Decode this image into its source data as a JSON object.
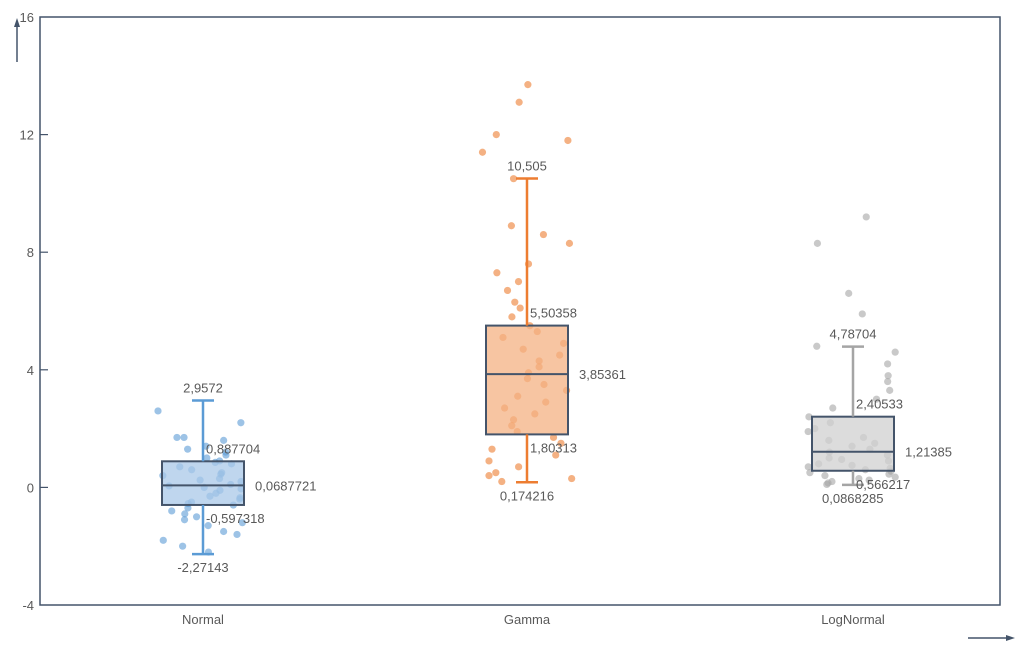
{
  "chart_data": {
    "type": "box",
    "title": "",
    "xlabel": "",
    "ylabel": "",
    "ylim": [
      -4,
      16
    ],
    "yticks": [
      "-4",
      "0",
      "4",
      "8",
      "12",
      "16"
    ],
    "ytick_values": [
      -4,
      0,
      4,
      8,
      12,
      16
    ],
    "grid": false,
    "categories": [
      "Normal",
      "Gamma",
      "LogNormal"
    ],
    "series": [
      {
        "name": "Normal",
        "color": "#5b9bd5",
        "fill": "#a9c8e8",
        "min": -2.27143,
        "q1": -0.597318,
        "median": 0.0687721,
        "q3": 0.887704,
        "max": 2.9572,
        "labels": {
          "min": "-2,27143",
          "q1": "-0,597318",
          "median": "0,0687721",
          "q3": "0,887704",
          "max": "2,9572"
        },
        "points": [
          2.6,
          2.2,
          1.7,
          1.7,
          1.6,
          1.4,
          1.3,
          1.2,
          1.1,
          1.0,
          0.9,
          0.85,
          0.8,
          0.7,
          0.6,
          0.5,
          0.45,
          0.4,
          0.3,
          0.25,
          0.2,
          0.1,
          0.05,
          0.0,
          -0.05,
          -0.1,
          -0.2,
          -0.3,
          -0.35,
          -0.4,
          -0.5,
          -0.55,
          -0.6,
          -0.7,
          -0.8,
          -0.9,
          -1.0,
          -1.1,
          -1.2,
          -1.3,
          -1.5,
          -1.6,
          -1.8,
          -2.0,
          -2.2
        ]
      },
      {
        "name": "Gamma",
        "color": "#ed7d31",
        "fill": "#f4b183",
        "min": 0.174216,
        "q1": 1.80313,
        "median": 3.85361,
        "q3": 5.50358,
        "max": 10.505,
        "labels": {
          "min": "0,174216",
          "q1": "1,80313",
          "median": "3,85361",
          "q3": "5,50358",
          "max": "10,505"
        },
        "points": [
          13.7,
          13.1,
          12.0,
          11.8,
          11.4,
          10.5,
          8.9,
          8.6,
          8.3,
          7.6,
          7.3,
          7.0,
          6.7,
          6.3,
          6.1,
          5.8,
          5.5,
          5.3,
          5.1,
          4.9,
          4.7,
          4.5,
          4.3,
          4.1,
          3.9,
          3.7,
          3.5,
          3.3,
          3.1,
          2.9,
          2.7,
          2.5,
          2.3,
          2.1,
          1.9,
          1.7,
          1.5,
          1.3,
          1.1,
          0.9,
          0.7,
          0.5,
          0.4,
          0.3,
          0.2
        ]
      },
      {
        "name": "LogNormal",
        "color": "#a5a5a5",
        "fill": "#d0d0d0",
        "min": 0.0868285,
        "q1": 0.566217,
        "median": 1.21385,
        "q3": 2.40533,
        "max": 4.78704,
        "labels": {
          "min": "0,0868285",
          "q1": "0,566217",
          "median": "1,21385",
          "q3": "2,40533",
          "max": "4,78704"
        },
        "points": [
          9.2,
          8.3,
          6.6,
          5.9,
          4.8,
          4.6,
          4.2,
          3.8,
          3.6,
          3.3,
          3.0,
          2.7,
          2.4,
          2.2,
          2.0,
          1.9,
          1.7,
          1.6,
          1.5,
          1.4,
          1.3,
          1.2,
          1.1,
          1.0,
          0.95,
          0.9,
          0.8,
          0.75,
          0.7,
          0.65,
          0.6,
          0.55,
          0.5,
          0.45,
          0.4,
          0.35,
          0.3,
          0.25,
          0.2,
          0.15,
          0.1
        ]
      }
    ]
  }
}
